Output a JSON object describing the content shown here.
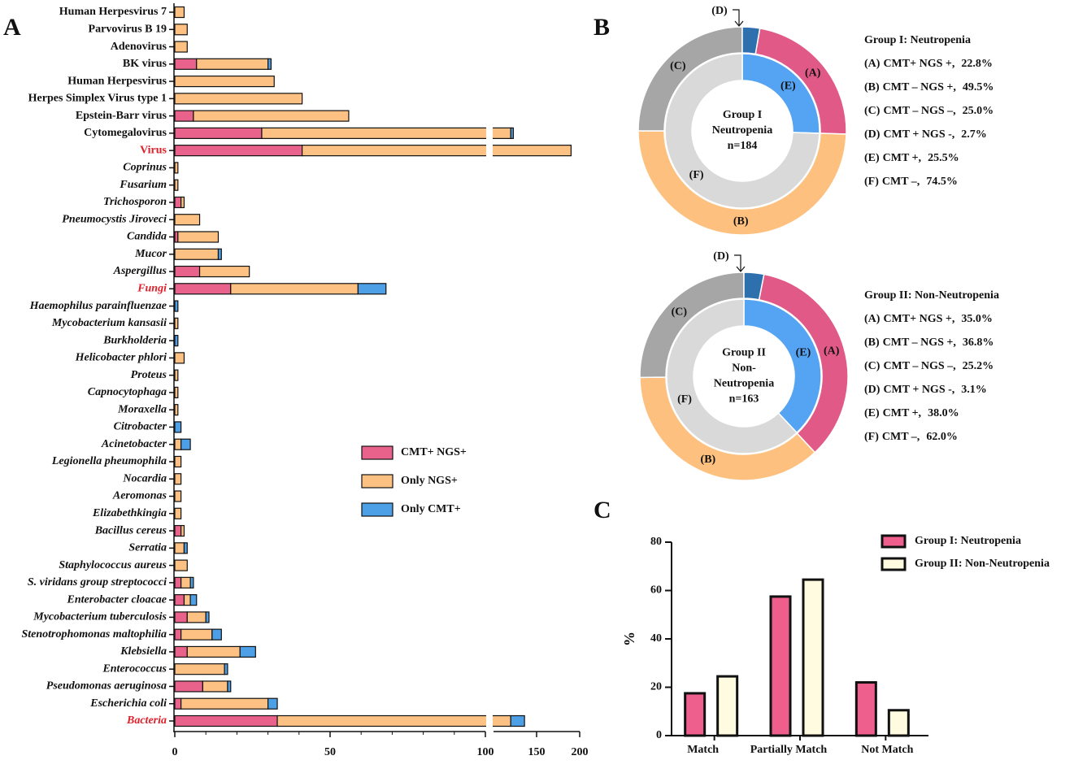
{
  "chart_data": [
    {
      "type": "stacked_barh",
      "panel": "A",
      "categories": [
        "Human Herpesvirus 7",
        "Parvovirus B 19",
        "Adenovirus",
        "BK virus",
        "Human Herpesvirus",
        "Herpes Simplex Virus type 1",
        "Epstein-Barr virus",
        "Cytomegalovirus",
        "Virus",
        "Coprinus",
        "Fusarium",
        "Trichosporon",
        "Pneumocystis Jiroveci",
        "Candida",
        "Mucor",
        "Aspergillus",
        "Fungi",
        "Haemophilus parainfluenzae",
        "Mycobacterium kansasii",
        "Burkholderia",
        "Helicobacter phlori",
        "Proteus",
        "Capnocytophaga",
        "Moraxella",
        "Citrobacter",
        "Acinetobacter",
        "Legionella pheumophila",
        "Nocardia",
        "Aeromonas",
        "Elizabethkingia",
        "Bacillus cereus",
        "Serratia",
        "Staphylococcus aureus",
        "S. viridans group streptococci",
        "Enterobacter cloacae",
        "Mycobacterium tuberculosis",
        "Stenotrophomonas maltophilia",
        "Klebsiella",
        "Enterococcus",
        "Pseudomonas aeruginosa",
        "Escherichia coli",
        "Bacteria"
      ],
      "label_colors": [
        "#111",
        "#111",
        "#111",
        "#111",
        "#111",
        "#111",
        "#111",
        "#111",
        "#e0202a",
        "#111",
        "#111",
        "#111",
        "#111",
        "#111",
        "#111",
        "#111",
        "#e0202a",
        "#111",
        "#111",
        "#111",
        "#111",
        "#111",
        "#111",
        "#111",
        "#111",
        "#111",
        "#111",
        "#111",
        "#111",
        "#111",
        "#111",
        "#111",
        "#111",
        "#111",
        "#111",
        "#111",
        "#111",
        "#111",
        "#111",
        "#111",
        "#111",
        "#e0202a"
      ],
      "series": [
        {
          "name": "CMT+ NGS+",
          "color": "#e8628c",
          "values": [
            0,
            0,
            0,
            7,
            0,
            0,
            6,
            28,
            41,
            0,
            0,
            2,
            0,
            1,
            0,
            8,
            18,
            0,
            0,
            0,
            0,
            0,
            0,
            0,
            0,
            0,
            0,
            0,
            0,
            0,
            2,
            0,
            0,
            2,
            3,
            4,
            2,
            4,
            0,
            9,
            2,
            33
          ]
        },
        {
          "name": "Only NGS+",
          "color": "#fdc283",
          "values": [
            3,
            4,
            4,
            23,
            32,
            41,
            50,
            92,
            149,
            1,
            1,
            1,
            8,
            13,
            14,
            16,
            41,
            0,
            1,
            0,
            3,
            1,
            1,
            1,
            0,
            2,
            2,
            2,
            2,
            2,
            1,
            3,
            4,
            3,
            2,
            6,
            10,
            17,
            16,
            8,
            28,
            87
          ]
        },
        {
          "name": "Only CMT+",
          "color": "#4d9fe6",
          "values": [
            0,
            0,
            0,
            1,
            0,
            0,
            0,
            3,
            0,
            0,
            0,
            0,
            0,
            0,
            1,
            0,
            9,
            1,
            0,
            1,
            0,
            0,
            0,
            0,
            2,
            3,
            0,
            0,
            0,
            0,
            0,
            1,
            0,
            1,
            2,
            1,
            3,
            5,
            1,
            1,
            3,
            16
          ]
        }
      ],
      "xlim": [
        0,
        200
      ],
      "xticks": [
        0,
        50,
        100,
        150,
        200
      ],
      "axis_break": 100
    },
    {
      "type": "donut",
      "panel": "B",
      "title": "Group I: Neutropenia",
      "center_label": [
        "Group I",
        "Neutropenia",
        "n=184"
      ],
      "categories": [
        "(A)",
        "(B)",
        "(C)",
        "(D)"
      ],
      "descriptions": [
        "CMT+ NGS +,",
        "CMT – NGS +,",
        "CMT – NGS –,",
        "CMT + NGS -,"
      ],
      "values": [
        22.8,
        49.5,
        25.0,
        2.7
      ],
      "value_labels": [
        "22.8%",
        "49.5%",
        "25.0%",
        "2.7%"
      ],
      "colors": [
        "#e15a87",
        "#fdc07e",
        "#a6a6a6",
        "#2e6fad"
      ],
      "inner": {
        "categories": [
          "(E)",
          "(F)"
        ],
        "descriptions": [
          "CMT +,",
          "CMT –,"
        ],
        "values": [
          25.5,
          74.5
        ],
        "value_labels": [
          "25.5%",
          "74.5%"
        ],
        "colors": [
          "#55a3f3",
          "#d9d9d9"
        ]
      }
    },
    {
      "type": "donut",
      "title": "Group II: Non-Neutropenia",
      "center_label": [
        "Group II",
        "Non-",
        "Neutropenia",
        "n=163"
      ],
      "categories": [
        "(A)",
        "(B)",
        "(C)",
        "(D)"
      ],
      "descriptions": [
        "CMT+ NGS +,",
        "CMT – NGS +,",
        "CMT – NGS –,",
        "CMT + NGS -,"
      ],
      "values": [
        35.0,
        36.8,
        25.2,
        3.1
      ],
      "value_labels": [
        "35.0%",
        "36.8%",
        "25.2%",
        "3.1%"
      ],
      "colors": [
        "#e15a87",
        "#fdc07e",
        "#a6a6a6",
        "#2e6fad"
      ],
      "inner": {
        "categories": [
          "(E)",
          "(F)"
        ],
        "descriptions": [
          "CMT +,",
          "CMT –,"
        ],
        "values": [
          38.0,
          62.0
        ],
        "value_labels": [
          "38.0%",
          "62.0%"
        ],
        "colors": [
          "#55a3f3",
          "#d9d9d9"
        ]
      }
    },
    {
      "type": "bar",
      "panel": "C",
      "y_label": "%",
      "categories": [
        "Match",
        "Partially Match",
        "Not Match"
      ],
      "series": [
        {
          "name": "Group I: Neutropenia",
          "color": "#ef5f8e",
          "values": [
            17.5,
            57.5,
            22
          ]
        },
        {
          "name": "Group II: Non-Neutropenia",
          "color": "#fffbe0",
          "values": [
            24.5,
            64.5,
            10.5
          ]
        }
      ],
      "ylim": [
        0,
        80
      ],
      "yticks": [
        0,
        20,
        40,
        60,
        80
      ]
    }
  ]
}
